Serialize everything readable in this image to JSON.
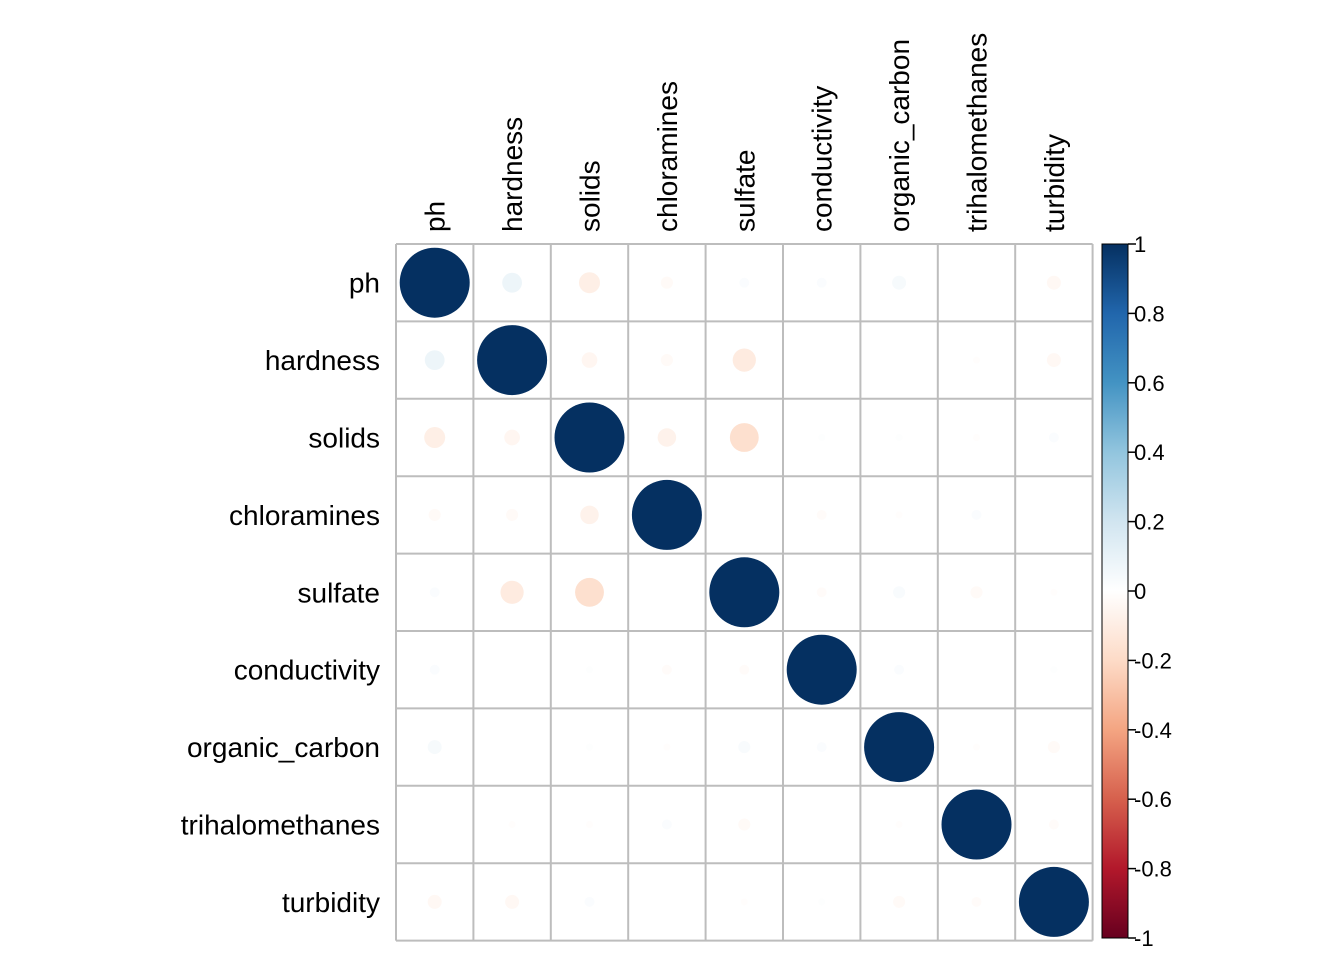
{
  "chart_data": {
    "type": "heatmap",
    "style": "circle correlation matrix",
    "variables": [
      "ph",
      "hardness",
      "solids",
      "chloramines",
      "sulfate",
      "conductivity",
      "organic_carbon",
      "trihalomethanes",
      "turbidity"
    ],
    "matrix": [
      [
        1.0,
        0.08,
        -0.09,
        -0.03,
        0.02,
        0.02,
        0.04,
        0.0,
        -0.04
      ],
      [
        0.08,
        1.0,
        -0.05,
        -0.03,
        -0.11,
        0.0,
        0.0,
        -0.01,
        -0.04
      ],
      [
        -0.09,
        -0.05,
        1.0,
        -0.07,
        -0.17,
        0.01,
        0.01,
        -0.01,
        0.02
      ],
      [
        -0.03,
        -0.03,
        -0.07,
        1.0,
        0.0,
        -0.02,
        -0.01,
        0.02,
        0.0
      ],
      [
        0.02,
        -0.11,
        -0.17,
        0.0,
        1.0,
        -0.02,
        0.03,
        -0.03,
        -0.01
      ],
      [
        0.02,
        0.0,
        0.01,
        -0.02,
        -0.02,
        1.0,
        0.02,
        0.0,
        0.01
      ],
      [
        0.04,
        0.0,
        0.01,
        -0.01,
        0.03,
        0.02,
        1.0,
        -0.01,
        -0.03
      ],
      [
        0.0,
        -0.01,
        -0.01,
        0.02,
        -0.03,
        0.0,
        -0.01,
        1.0,
        -0.02
      ],
      [
        -0.04,
        -0.04,
        0.02,
        0.0,
        -0.01,
        0.01,
        -0.03,
        -0.02,
        1.0
      ]
    ],
    "colorbar": {
      "ticks": [
        "1",
        "0.8",
        "0.6",
        "0.4",
        "0.2",
        "0",
        "-0.2",
        "-0.4",
        "-0.6",
        "-0.8",
        "-1"
      ],
      "range": [
        -1,
        1
      ],
      "colors": [
        "#67001f",
        "#b2182b",
        "#d6604d",
        "#f4a582",
        "#fddbc7",
        "#ffffff",
        "#d1e5f0",
        "#92c5de",
        "#4393c3",
        "#2166ac",
        "#053061"
      ]
    }
  }
}
